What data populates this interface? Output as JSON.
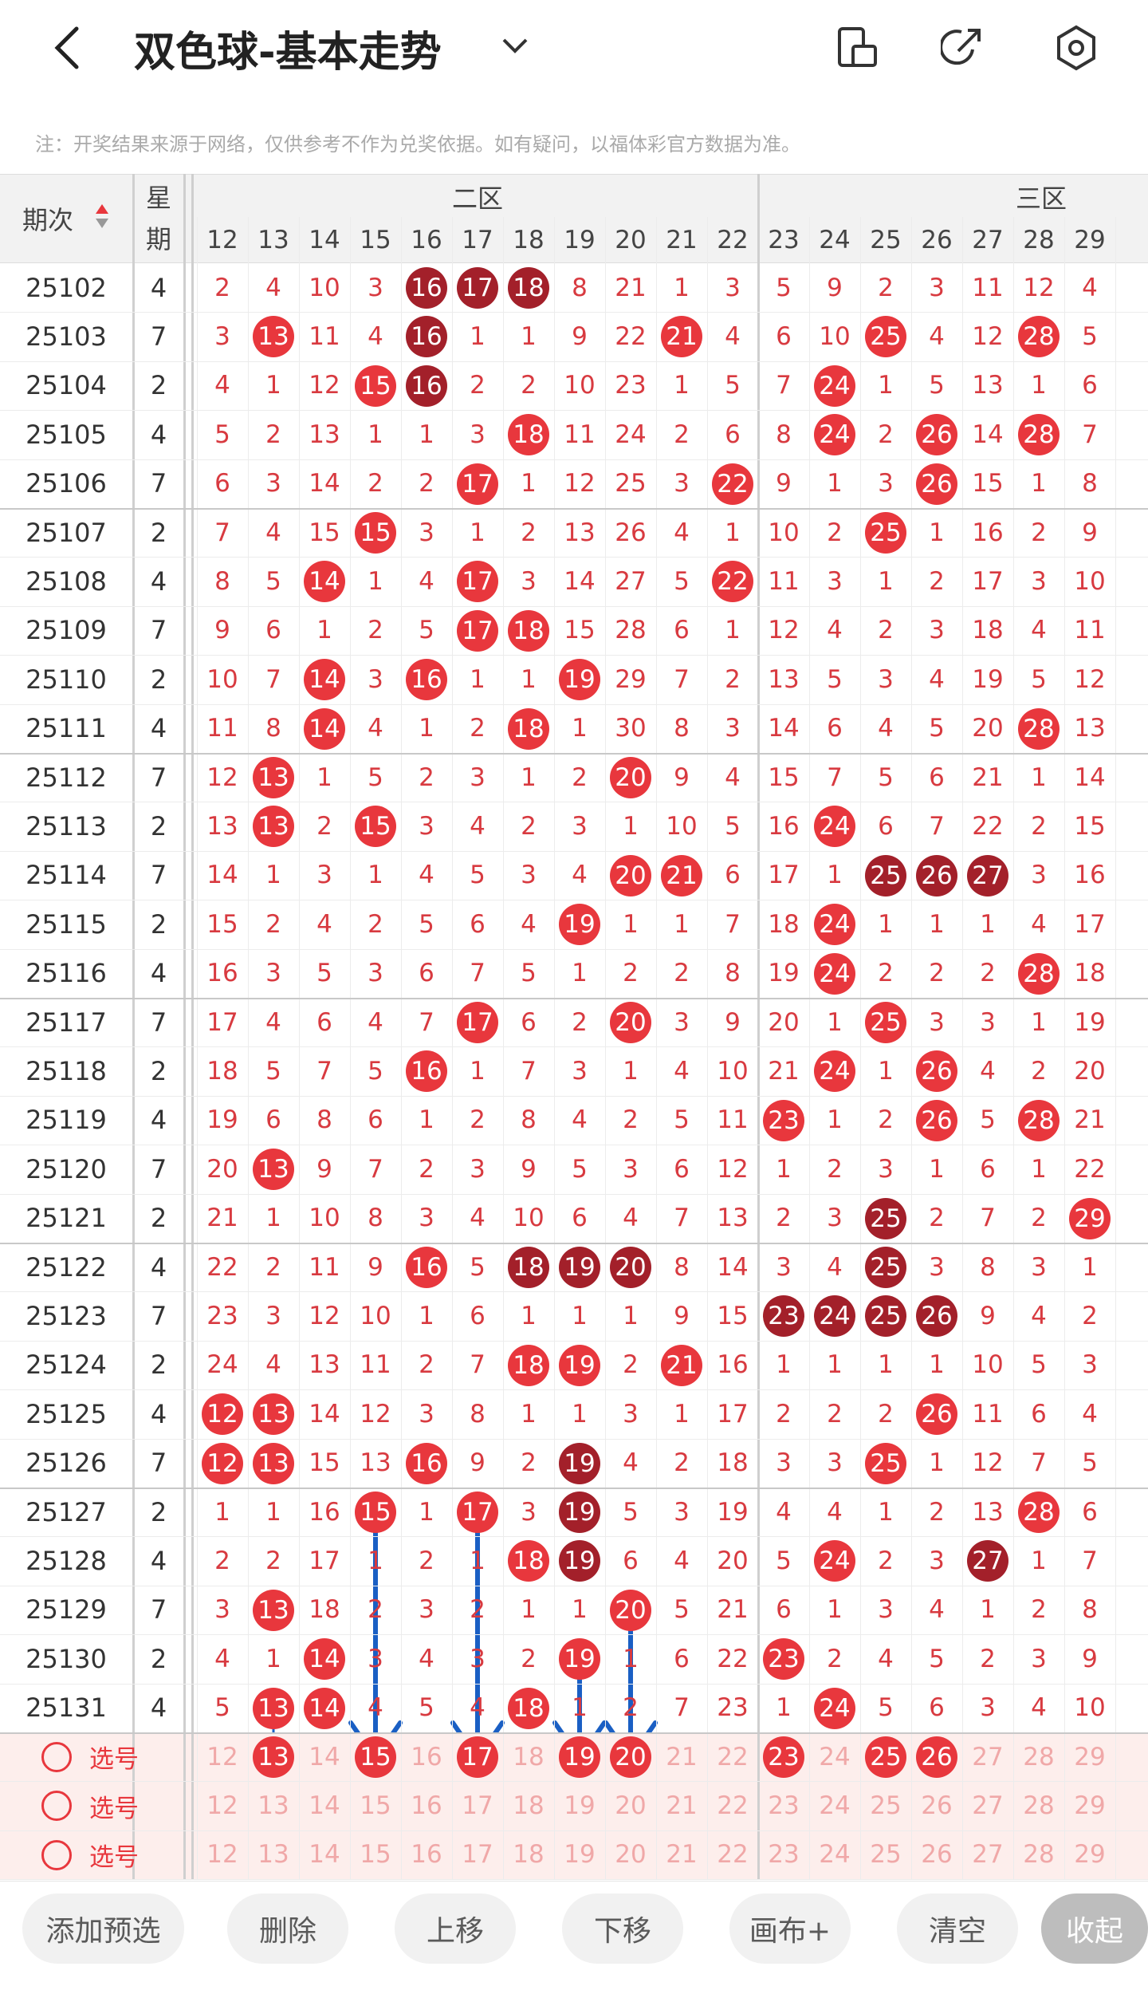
{
  "header": {
    "title": "双色球-基本走势",
    "note": "注：开奖结果来源于网络，仅供参考不作为兑奖依据。如有疑问，以福体彩官方数据为准。"
  },
  "table": {
    "issue_header": "期次",
    "weekday_header": "星期",
    "zones": [
      "二区",
      "三区"
    ],
    "colors": {
      "red": "#e8373d",
      "dark": "#a3202a"
    },
    "columns": [
      12,
      13,
      14,
      15,
      16,
      17,
      18,
      19,
      20,
      21,
      22,
      23,
      24,
      25,
      26,
      27,
      28,
      29
    ],
    "rows": [
      {
        "issue": 25102,
        "weekday": 4,
        "cells": [
          2,
          4,
          10,
          3,
          {
            "v": 16,
            "c": "dark"
          },
          {
            "v": 17,
            "c": "dark"
          },
          {
            "v": 18,
            "c": "dark"
          },
          8,
          21,
          1,
          3,
          5,
          9,
          2,
          3,
          11,
          12,
          4
        ]
      },
      {
        "issue": 25103,
        "weekday": 7,
        "cells": [
          3,
          {
            "v": 13,
            "c": "red"
          },
          11,
          4,
          {
            "v": 16,
            "c": "dark"
          },
          1,
          1,
          9,
          22,
          {
            "v": 21,
            "c": "red"
          },
          4,
          6,
          10,
          {
            "v": 25,
            "c": "red"
          },
          4,
          12,
          {
            "v": 28,
            "c": "red"
          },
          5
        ]
      },
      {
        "issue": 25104,
        "weekday": 2,
        "cells": [
          4,
          1,
          12,
          {
            "v": 15,
            "c": "red"
          },
          {
            "v": 16,
            "c": "dark"
          },
          2,
          2,
          10,
          23,
          1,
          5,
          7,
          {
            "v": 24,
            "c": "red"
          },
          1,
          5,
          13,
          1,
          6
        ]
      },
      {
        "issue": 25105,
        "weekday": 4,
        "cells": [
          5,
          2,
          13,
          1,
          1,
          3,
          {
            "v": 18,
            "c": "red"
          },
          11,
          24,
          2,
          6,
          8,
          {
            "v": 24,
            "c": "red"
          },
          2,
          {
            "v": 26,
            "c": "red"
          },
          14,
          {
            "v": 28,
            "c": "red"
          },
          7
        ]
      },
      {
        "issue": 25106,
        "weekday": 7,
        "cells": [
          6,
          3,
          14,
          2,
          2,
          {
            "v": 17,
            "c": "red"
          },
          1,
          12,
          25,
          3,
          {
            "v": 22,
            "c": "red"
          },
          9,
          1,
          3,
          {
            "v": 26,
            "c": "red"
          },
          15,
          1,
          8
        ]
      },
      {
        "issue": 25107,
        "weekday": 2,
        "cells": [
          7,
          4,
          15,
          {
            "v": 15,
            "c": "red"
          },
          3,
          1,
          2,
          13,
          26,
          4,
          1,
          10,
          2,
          {
            "v": 25,
            "c": "red"
          },
          1,
          16,
          2,
          9
        ]
      },
      {
        "issue": 25108,
        "weekday": 4,
        "cells": [
          8,
          5,
          {
            "v": 14,
            "c": "red"
          },
          1,
          4,
          {
            "v": 17,
            "c": "red"
          },
          3,
          14,
          27,
          5,
          {
            "v": 22,
            "c": "red"
          },
          11,
          3,
          1,
          2,
          17,
          3,
          10
        ]
      },
      {
        "issue": 25109,
        "weekday": 7,
        "cells": [
          9,
          6,
          1,
          2,
          5,
          {
            "v": 17,
            "c": "red"
          },
          {
            "v": 18,
            "c": "red"
          },
          15,
          28,
          6,
          1,
          12,
          4,
          2,
          3,
          18,
          4,
          11
        ]
      },
      {
        "issue": 25110,
        "weekday": 2,
        "cells": [
          10,
          7,
          {
            "v": 14,
            "c": "red"
          },
          3,
          {
            "v": 16,
            "c": "red"
          },
          1,
          1,
          {
            "v": 19,
            "c": "red"
          },
          29,
          7,
          2,
          13,
          5,
          3,
          4,
          19,
          5,
          12
        ]
      },
      {
        "issue": 25111,
        "weekday": 4,
        "cells": [
          11,
          8,
          {
            "v": 14,
            "c": "red"
          },
          4,
          1,
          2,
          {
            "v": 18,
            "c": "red"
          },
          1,
          30,
          8,
          3,
          14,
          6,
          4,
          5,
          20,
          {
            "v": 28,
            "c": "red"
          },
          13
        ]
      },
      {
        "issue": 25112,
        "weekday": 7,
        "cells": [
          12,
          {
            "v": 13,
            "c": "red"
          },
          1,
          5,
          2,
          3,
          1,
          2,
          {
            "v": 20,
            "c": "red"
          },
          9,
          4,
          15,
          7,
          5,
          6,
          21,
          1,
          14
        ]
      },
      {
        "issue": 25113,
        "weekday": 2,
        "cells": [
          13,
          {
            "v": 13,
            "c": "red"
          },
          2,
          {
            "v": 15,
            "c": "red"
          },
          3,
          4,
          2,
          3,
          1,
          10,
          5,
          16,
          {
            "v": 24,
            "c": "red"
          },
          6,
          7,
          22,
          2,
          15
        ]
      },
      {
        "issue": 25114,
        "weekday": 7,
        "cells": [
          14,
          1,
          3,
          1,
          4,
          5,
          3,
          4,
          {
            "v": 20,
            "c": "red"
          },
          {
            "v": 21,
            "c": "red"
          },
          6,
          17,
          1,
          {
            "v": 25,
            "c": "dark"
          },
          {
            "v": 26,
            "c": "dark"
          },
          {
            "v": 27,
            "c": "dark"
          },
          3,
          16
        ]
      },
      {
        "issue": 25115,
        "weekday": 2,
        "cells": [
          15,
          2,
          4,
          2,
          5,
          6,
          4,
          {
            "v": 19,
            "c": "red"
          },
          1,
          1,
          7,
          18,
          {
            "v": 24,
            "c": "red"
          },
          1,
          1,
          1,
          4,
          17
        ]
      },
      {
        "issue": 25116,
        "weekday": 4,
        "cells": [
          16,
          3,
          5,
          3,
          6,
          7,
          5,
          1,
          2,
          2,
          8,
          19,
          {
            "v": 24,
            "c": "red"
          },
          2,
          2,
          2,
          {
            "v": 28,
            "c": "red"
          },
          18
        ]
      },
      {
        "issue": 25117,
        "weekday": 7,
        "cells": [
          17,
          4,
          6,
          4,
          7,
          {
            "v": 17,
            "c": "red"
          },
          6,
          2,
          {
            "v": 20,
            "c": "red"
          },
          3,
          9,
          20,
          1,
          {
            "v": 25,
            "c": "red"
          },
          3,
          3,
          1,
          19
        ]
      },
      {
        "issue": 25118,
        "weekday": 2,
        "cells": [
          18,
          5,
          7,
          5,
          {
            "v": 16,
            "c": "red"
          },
          1,
          7,
          3,
          1,
          4,
          10,
          21,
          {
            "v": 24,
            "c": "red"
          },
          1,
          {
            "v": 26,
            "c": "red"
          },
          4,
          2,
          20
        ]
      },
      {
        "issue": 25119,
        "weekday": 4,
        "cells": [
          19,
          6,
          8,
          6,
          1,
          2,
          8,
          4,
          2,
          5,
          11,
          {
            "v": 23,
            "c": "red"
          },
          1,
          2,
          {
            "v": 26,
            "c": "red"
          },
          5,
          {
            "v": 28,
            "c": "red"
          },
          21
        ]
      },
      {
        "issue": 25120,
        "weekday": 7,
        "cells": [
          20,
          {
            "v": 13,
            "c": "red"
          },
          9,
          7,
          2,
          3,
          9,
          5,
          3,
          6,
          12,
          1,
          2,
          3,
          1,
          6,
          1,
          22
        ]
      },
      {
        "issue": 25121,
        "weekday": 2,
        "cells": [
          21,
          1,
          10,
          8,
          3,
          4,
          10,
          6,
          4,
          7,
          13,
          2,
          3,
          {
            "v": 25,
            "c": "dark"
          },
          2,
          7,
          2,
          {
            "v": 29,
            "c": "red"
          }
        ]
      },
      {
        "issue": 25122,
        "weekday": 4,
        "cells": [
          22,
          2,
          11,
          9,
          {
            "v": 16,
            "c": "red"
          },
          5,
          {
            "v": 18,
            "c": "dark"
          },
          {
            "v": 19,
            "c": "dark"
          },
          {
            "v": 20,
            "c": "dark"
          },
          8,
          14,
          3,
          4,
          {
            "v": 25,
            "c": "dark"
          },
          3,
          8,
          3,
          1
        ]
      },
      {
        "issue": 25123,
        "weekday": 7,
        "cells": [
          23,
          3,
          12,
          10,
          1,
          6,
          1,
          1,
          1,
          9,
          15,
          {
            "v": 23,
            "c": "dark"
          },
          {
            "v": 24,
            "c": "dark"
          },
          {
            "v": 25,
            "c": "dark"
          },
          {
            "v": 26,
            "c": "dark"
          },
          9,
          4,
          2
        ]
      },
      {
        "issue": 25124,
        "weekday": 2,
        "cells": [
          24,
          4,
          13,
          11,
          2,
          7,
          {
            "v": 18,
            "c": "red"
          },
          {
            "v": 19,
            "c": "red"
          },
          2,
          {
            "v": 21,
            "c": "red"
          },
          16,
          1,
          1,
          1,
          1,
          10,
          5,
          3
        ]
      },
      {
        "issue": 25125,
        "weekday": 4,
        "cells": [
          {
            "v": 12,
            "c": "red"
          },
          {
            "v": 13,
            "c": "red"
          },
          14,
          12,
          3,
          8,
          1,
          1,
          3,
          1,
          17,
          2,
          2,
          2,
          {
            "v": 26,
            "c": "red"
          },
          11,
          6,
          4
        ]
      },
      {
        "issue": 25126,
        "weekday": 7,
        "cells": [
          {
            "v": 12,
            "c": "red"
          },
          {
            "v": 13,
            "c": "red"
          },
          15,
          13,
          {
            "v": 16,
            "c": "red"
          },
          9,
          2,
          {
            "v": 19,
            "c": "dark"
          },
          4,
          2,
          18,
          3,
          3,
          {
            "v": 25,
            "c": "red"
          },
          1,
          12,
          7,
          5
        ]
      },
      {
        "issue": 25127,
        "weekday": 2,
        "cells": [
          1,
          1,
          16,
          {
            "v": 15,
            "c": "red"
          },
          1,
          {
            "v": 17,
            "c": "red"
          },
          3,
          {
            "v": 19,
            "c": "dark"
          },
          5,
          3,
          19,
          4,
          4,
          1,
          2,
          13,
          {
            "v": 28,
            "c": "red"
          },
          6
        ]
      },
      {
        "issue": 25128,
        "weekday": 4,
        "cells": [
          2,
          2,
          17,
          1,
          2,
          1,
          {
            "v": 18,
            "c": "red"
          },
          {
            "v": 19,
            "c": "dark"
          },
          6,
          4,
          20,
          5,
          {
            "v": 24,
            "c": "red"
          },
          2,
          3,
          {
            "v": 27,
            "c": "dark"
          },
          1,
          7
        ]
      },
      {
        "issue": 25129,
        "weekday": 7,
        "cells": [
          3,
          {
            "v": 13,
            "c": "red"
          },
          18,
          2,
          3,
          2,
          1,
          1,
          {
            "v": 20,
            "c": "red"
          },
          5,
          21,
          6,
          1,
          3,
          4,
          1,
          2,
          8
        ]
      },
      {
        "issue": 25130,
        "weekday": 2,
        "cells": [
          4,
          1,
          {
            "v": 14,
            "c": "red"
          },
          3,
          4,
          3,
          2,
          {
            "v": 19,
            "c": "red"
          },
          1,
          6,
          22,
          {
            "v": 23,
            "c": "red"
          },
          2,
          4,
          5,
          2,
          3,
          9
        ]
      },
      {
        "issue": 25131,
        "weekday": 4,
        "cells": [
          5,
          {
            "v": 13,
            "c": "red"
          },
          {
            "v": 14,
            "c": "red"
          },
          4,
          5,
          4,
          {
            "v": 18,
            "c": "red"
          },
          1,
          2,
          7,
          23,
          1,
          {
            "v": 24,
            "c": "red"
          },
          5,
          6,
          3,
          4,
          10
        ]
      }
    ],
    "picks": [
      {
        "label": "选号",
        "cells": [
          12,
          {
            "v": 13,
            "c": "red"
          },
          14,
          {
            "v": 15,
            "c": "red"
          },
          16,
          {
            "v": 17,
            "c": "red"
          },
          18,
          {
            "v": 19,
            "c": "red"
          },
          {
            "v": 20,
            "c": "red"
          },
          21,
          22,
          {
            "v": 23,
            "c": "red"
          },
          24,
          {
            "v": 25,
            "c": "red"
          },
          {
            "v": 26,
            "c": "red"
          },
          27,
          28,
          29
        ]
      },
      {
        "label": "选号",
        "cells": [
          12,
          13,
          14,
          15,
          16,
          17,
          18,
          19,
          20,
          21,
          22,
          23,
          24,
          25,
          26,
          27,
          28,
          29
        ]
      },
      {
        "label": "选号",
        "cells": [
          12,
          13,
          14,
          15,
          16,
          17,
          18,
          19,
          20,
          21,
          22,
          23,
          24,
          25,
          26,
          27,
          28,
          29
        ]
      }
    ]
  },
  "buttons": [
    "添加预选",
    "删除",
    "上移",
    "下移",
    "画布+",
    "清空",
    "收起"
  ]
}
